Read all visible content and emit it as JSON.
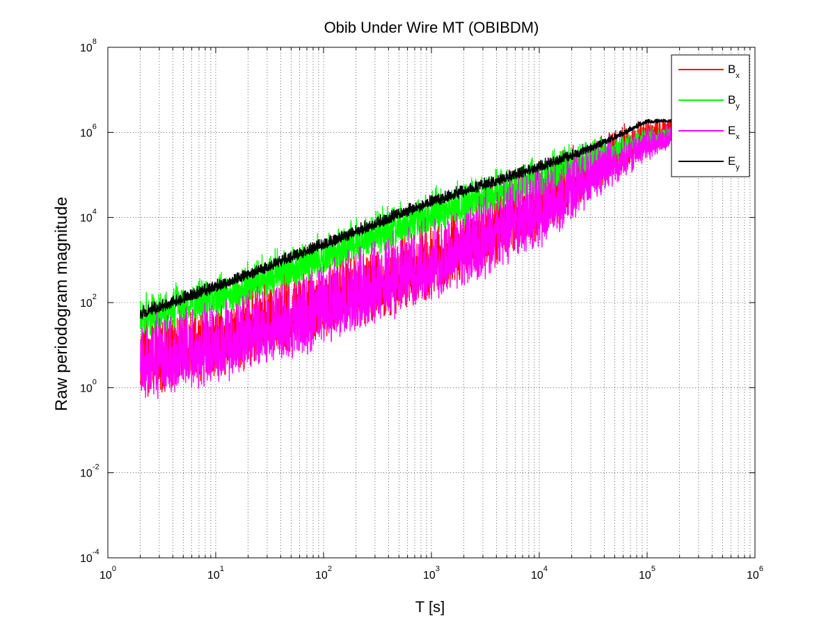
{
  "chart_data": {
    "type": "line",
    "title": "Obib Under Wire MT (OBIBDM)",
    "xlabel": "T [s]",
    "ylabel": "Raw periodogram magnitude",
    "xscale": "log",
    "yscale": "log",
    "xlim": [
      1,
      1000000
    ],
    "ylim": [
      0.0001,
      100000000
    ],
    "grid": true,
    "legend_position": "top-right",
    "x_ticks": [
      {
        "base": "10",
        "exp": "0",
        "value": 1
      },
      {
        "base": "10",
        "exp": "1",
        "value": 10
      },
      {
        "base": "10",
        "exp": "2",
        "value": 100
      },
      {
        "base": "10",
        "exp": "3",
        "value": 1000
      },
      {
        "base": "10",
        "exp": "4",
        "value": 10000
      },
      {
        "base": "10",
        "exp": "5",
        "value": 100000
      },
      {
        "base": "10",
        "exp": "6",
        "value": 1000000
      }
    ],
    "y_ticks": [
      {
        "base": "10",
        "exp": "-4",
        "value": 0.0001
      },
      {
        "base": "10",
        "exp": "-2",
        "value": 0.01
      },
      {
        "base": "10",
        "exp": "0",
        "value": 1
      },
      {
        "base": "10",
        "exp": "2",
        "value": 100
      },
      {
        "base": "10",
        "exp": "4",
        "value": 10000
      },
      {
        "base": "10",
        "exp": "6",
        "value": 1000000
      },
      {
        "base": "10",
        "exp": "8",
        "value": 100000000
      }
    ],
    "series": [
      {
        "name": "B",
        "name_sub": "x",
        "color": "#ff0000",
        "trend": [
          [
            2,
            20
          ],
          [
            10,
            60
          ],
          [
            100,
            500
          ],
          [
            1000,
            4000
          ],
          [
            10000,
            100000
          ],
          [
            30000,
            400000
          ],
          [
            100000,
            1500000
          ],
          [
            500000,
            2500000
          ]
        ],
        "noise_decades": 1.6
      },
      {
        "name": "B",
        "name_sub": "y",
        "color": "#00ff00",
        "trend": [
          [
            2,
            100
          ],
          [
            10,
            300
          ],
          [
            100,
            3000
          ],
          [
            1000,
            30000
          ],
          [
            10000,
            200000
          ],
          [
            30000,
            500000
          ],
          [
            100000,
            1000000
          ],
          [
            500000,
            2000000
          ]
        ],
        "noise_decades": 0.9
      },
      {
        "name": "E",
        "name_sub": "x",
        "color": "#ff00ff",
        "trend": [
          [
            2,
            20
          ],
          [
            10,
            50
          ],
          [
            100,
            400
          ],
          [
            1000,
            4000
          ],
          [
            10000,
            80000
          ],
          [
            30000,
            300000
          ],
          [
            100000,
            1000000
          ],
          [
            500000,
            2000000
          ]
        ],
        "noise_decades": 1.7
      },
      {
        "name": "E",
        "name_sub": "y",
        "color": "#000000",
        "trend": [
          [
            2,
            70
          ],
          [
            10,
            300
          ],
          [
            100,
            3000
          ],
          [
            1000,
            30000
          ],
          [
            10000,
            200000
          ],
          [
            30000,
            500000
          ],
          [
            100000,
            2000000
          ],
          [
            500000,
            2000000
          ]
        ],
        "noise_decades": 0.25
      }
    ]
  }
}
